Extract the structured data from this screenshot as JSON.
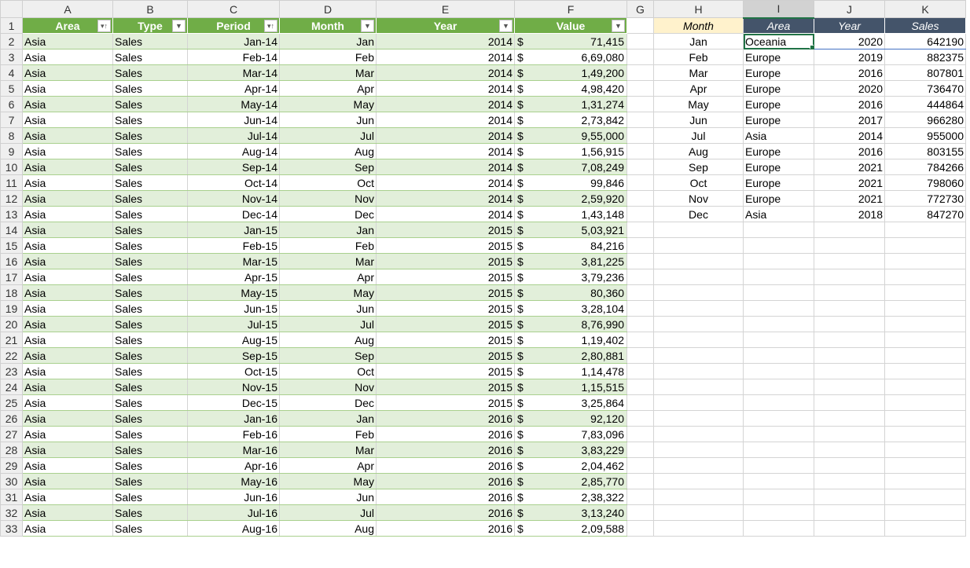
{
  "columns": [
    "A",
    "B",
    "C",
    "D",
    "E",
    "F",
    "G",
    "H",
    "I",
    "J",
    "K"
  ],
  "selected_column": "I",
  "active_cell": "I2",
  "colors": {
    "table_header": "#70ad47",
    "band": "#e2efda",
    "month_header": "#fff2cc",
    "lookup_header": "#44546a",
    "selection": "#217346"
  },
  "main_table": {
    "headers": [
      {
        "label": "Area",
        "filter_icon": "sort-filter-icon"
      },
      {
        "label": "Type",
        "filter_icon": "dropdown-arrow-icon"
      },
      {
        "label": "Period",
        "filter_icon": "sort-filter-icon"
      },
      {
        "label": "Month",
        "filter_icon": "dropdown-arrow-icon"
      },
      {
        "label": "Year",
        "filter_icon": "dropdown-arrow-icon"
      },
      {
        "label": "Value",
        "filter_icon": "dropdown-arrow-icon"
      }
    ],
    "currency": "$",
    "rows": [
      [
        "Asia",
        "Sales",
        "Jan-14",
        "Jan",
        "2014",
        "71,415"
      ],
      [
        "Asia",
        "Sales",
        "Feb-14",
        "Feb",
        "2014",
        "6,69,080"
      ],
      [
        "Asia",
        "Sales",
        "Mar-14",
        "Mar",
        "2014",
        "1,49,200"
      ],
      [
        "Asia",
        "Sales",
        "Apr-14",
        "Apr",
        "2014",
        "4,98,420"
      ],
      [
        "Asia",
        "Sales",
        "May-14",
        "May",
        "2014",
        "1,31,274"
      ],
      [
        "Asia",
        "Sales",
        "Jun-14",
        "Jun",
        "2014",
        "2,73,842"
      ],
      [
        "Asia",
        "Sales",
        "Jul-14",
        "Jul",
        "2014",
        "9,55,000"
      ],
      [
        "Asia",
        "Sales",
        "Aug-14",
        "Aug",
        "2014",
        "1,56,915"
      ],
      [
        "Asia",
        "Sales",
        "Sep-14",
        "Sep",
        "2014",
        "7,08,249"
      ],
      [
        "Asia",
        "Sales",
        "Oct-14",
        "Oct",
        "2014",
        "99,846"
      ],
      [
        "Asia",
        "Sales",
        "Nov-14",
        "Nov",
        "2014",
        "2,59,920"
      ],
      [
        "Asia",
        "Sales",
        "Dec-14",
        "Dec",
        "2014",
        "1,43,148"
      ],
      [
        "Asia",
        "Sales",
        "Jan-15",
        "Jan",
        "2015",
        "5,03,921"
      ],
      [
        "Asia",
        "Sales",
        "Feb-15",
        "Feb",
        "2015",
        "84,216"
      ],
      [
        "Asia",
        "Sales",
        "Mar-15",
        "Mar",
        "2015",
        "3,81,225"
      ],
      [
        "Asia",
        "Sales",
        "Apr-15",
        "Apr",
        "2015",
        "3,79,236"
      ],
      [
        "Asia",
        "Sales",
        "May-15",
        "May",
        "2015",
        "80,360"
      ],
      [
        "Asia",
        "Sales",
        "Jun-15",
        "Jun",
        "2015",
        "3,28,104"
      ],
      [
        "Asia",
        "Sales",
        "Jul-15",
        "Jul",
        "2015",
        "8,76,990"
      ],
      [
        "Asia",
        "Sales",
        "Aug-15",
        "Aug",
        "2015",
        "1,19,402"
      ],
      [
        "Asia",
        "Sales",
        "Sep-15",
        "Sep",
        "2015",
        "2,80,881"
      ],
      [
        "Asia",
        "Sales",
        "Oct-15",
        "Oct",
        "2015",
        "1,14,478"
      ],
      [
        "Asia",
        "Sales",
        "Nov-15",
        "Nov",
        "2015",
        "1,15,515"
      ],
      [
        "Asia",
        "Sales",
        "Dec-15",
        "Dec",
        "2015",
        "3,25,864"
      ],
      [
        "Asia",
        "Sales",
        "Jan-16",
        "Jan",
        "2016",
        "92,120"
      ],
      [
        "Asia",
        "Sales",
        "Feb-16",
        "Feb",
        "2016",
        "7,83,096"
      ],
      [
        "Asia",
        "Sales",
        "Mar-16",
        "Mar",
        "2016",
        "3,83,229"
      ],
      [
        "Asia",
        "Sales",
        "Apr-16",
        "Apr",
        "2016",
        "2,04,462"
      ],
      [
        "Asia",
        "Sales",
        "May-16",
        "May",
        "2016",
        "2,85,770"
      ],
      [
        "Asia",
        "Sales",
        "Jun-16",
        "Jun",
        "2016",
        "2,38,322"
      ],
      [
        "Asia",
        "Sales",
        "Jul-16",
        "Jul",
        "2016",
        "3,13,240"
      ],
      [
        "Asia",
        "Sales",
        "Aug-16",
        "Aug",
        "2016",
        "2,09,588"
      ]
    ]
  },
  "lookup_table": {
    "headers": [
      "Month",
      "Area",
      "Year",
      "Sales"
    ],
    "rows": [
      [
        "Jan",
        "Oceania",
        "2020",
        "642190"
      ],
      [
        "Feb",
        "Europe",
        "2019",
        "882375"
      ],
      [
        "Mar",
        "Europe",
        "2016",
        "807801"
      ],
      [
        "Apr",
        "Europe",
        "2020",
        "736470"
      ],
      [
        "May",
        "Europe",
        "2016",
        "444864"
      ],
      [
        "Jun",
        "Europe",
        "2017",
        "966280"
      ],
      [
        "Jul",
        "Asia",
        "2014",
        "955000"
      ],
      [
        "Aug",
        "Europe",
        "2016",
        "803155"
      ],
      [
        "Sep",
        "Europe",
        "2021",
        "784266"
      ],
      [
        "Oct",
        "Europe",
        "2021",
        "798060"
      ],
      [
        "Nov",
        "Europe",
        "2021",
        "772730"
      ],
      [
        "Dec",
        "Asia",
        "2018",
        "847270"
      ]
    ]
  }
}
